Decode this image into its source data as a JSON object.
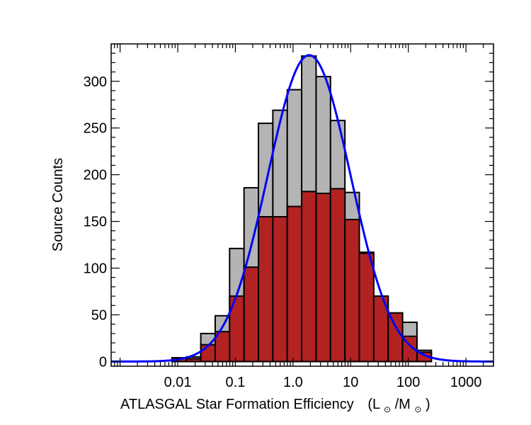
{
  "chart_data": {
    "type": "bar",
    "title": "",
    "xlabel": "ATLASGAL Star Formation Efficiency",
    "xlabel_unit_text": "(L",
    "xlabel_unit_sub1": "⊙",
    "xlabel_unit_mid": "/M",
    "xlabel_unit_sub2": "⊙",
    "xlabel_unit_close": ")",
    "ylabel": "Source Counts",
    "xscale": "log",
    "xlim": [
      0.0007,
      3000
    ],
    "ylim": [
      -5,
      340
    ],
    "x_tick_labels": [
      "0.01",
      "0.1",
      "1.0",
      "10",
      "100",
      "1000"
    ],
    "x_tick_values": [
      0.01,
      0.1,
      1,
      10,
      100,
      1000
    ],
    "y_ticks": [
      0,
      50,
      100,
      150,
      200,
      250,
      300
    ],
    "bin_edges_log10": [
      -2.1,
      -1.85,
      -1.6,
      -1.35,
      -1.1,
      -0.85,
      -0.6,
      -0.35,
      -0.1,
      0.15,
      0.4,
      0.65,
      0.9,
      1.15,
      1.4,
      1.65,
      1.9,
      2.15,
      2.4
    ],
    "series": [
      {
        "values": [
          4,
          5,
          30,
          49,
          121,
          186,
          255,
          269,
          291,
          327,
          305,
          258,
          181,
          117,
          70,
          52,
          42,
          12
        ],
        "color": "#b4b4b4"
      },
      {
        "values": [
          4,
          3,
          18,
          32,
          70,
          101,
          155,
          155,
          166,
          182,
          180,
          185,
          152,
          116,
          70,
          52,
          27,
          10
        ],
        "color": "#b22222"
      }
    ],
    "fit_curve": {
      "type": "gaussian-in-log10",
      "peak": 328,
      "center_log10": 0.28,
      "sigma_log10": 0.72,
      "color": "#0000ff"
    },
    "grid": false
  }
}
